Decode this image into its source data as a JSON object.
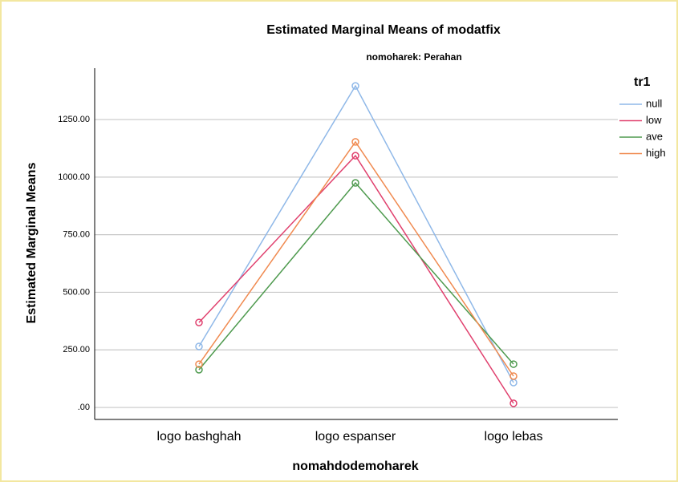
{
  "chart_data": {
    "type": "line",
    "title": "Estimated Marginal Means of modatfix",
    "subtitle": "nomoharek: Perahan",
    "y_label": "Estimated Marginal Means",
    "x_label": "nomahdodemoharek",
    "legend_title": "tr1",
    "categories": [
      "logo bashghah",
      "logo espanser",
      "logo lebas"
    ],
    "series": [
      {
        "name": "null",
        "color": "#8fb8e8",
        "values": [
          265,
          1396,
          108
        ]
      },
      {
        "name": "low",
        "color": "#e0406e",
        "values": [
          369,
          1093,
          18
        ]
      },
      {
        "name": "ave",
        "color": "#4e9a4e",
        "values": [
          164,
          975,
          188
        ]
      },
      {
        "name": "high",
        "color": "#f08a50",
        "values": [
          188,
          1153,
          136
        ]
      }
    ],
    "ylim": [
      -52,
      1473
    ],
    "yticks": [
      {
        "value": 0,
        "label": ".00"
      },
      {
        "value": 250,
        "label": "250.00"
      },
      {
        "value": 500,
        "label": "500.00"
      },
      {
        "value": 750,
        "label": "750.00"
      },
      {
        "value": 1000,
        "label": "1000.00"
      },
      {
        "value": 1250,
        "label": "1250.00"
      }
    ],
    "grid": true,
    "legend": "right"
  }
}
